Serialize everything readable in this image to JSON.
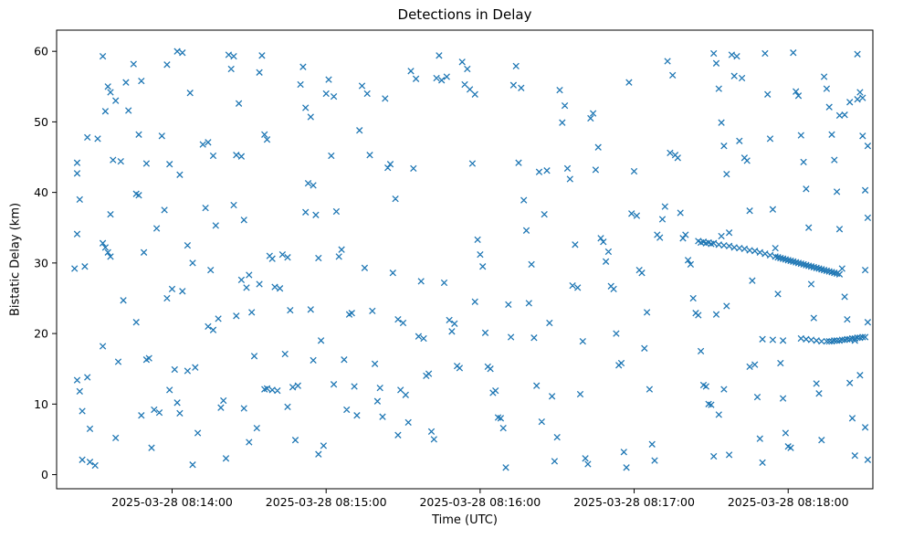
{
  "chart_data": {
    "type": "scatter",
    "title": "Detections in Delay",
    "xlabel": "Time (UTC)",
    "ylabel": "Bistatic Delay (km)",
    "x_unit": "seconds after 2025-03-28 08:13:00 UTC",
    "xlim": [
      15,
      333
    ],
    "ylim": [
      -2,
      63
    ],
    "grid": false,
    "legend": "none",
    "marker": "x",
    "marker_color": "#1f77b4",
    "x_ticks": [
      {
        "t": 60,
        "label": "2025-03-28 08:14:00"
      },
      {
        "t": 120,
        "label": "2025-03-28 08:15:00"
      },
      {
        "t": 180,
        "label": "2025-03-28 08:16:00"
      },
      {
        "t": 240,
        "label": "2025-03-28 08:17:00"
      },
      {
        "t": 300,
        "label": "2025-03-28 08:18:00"
      }
    ],
    "y_ticks": [
      0,
      10,
      20,
      30,
      40,
      50,
      60
    ],
    "points": [
      [
        23,
        44.2
      ],
      [
        23,
        42.7
      ],
      [
        24,
        39.0
      ],
      [
        23,
        34.1
      ],
      [
        22,
        29.2
      ],
      [
        26,
        29.5
      ],
      [
        23,
        13.4
      ],
      [
        27,
        13.8
      ],
      [
        24,
        11.8
      ],
      [
        25,
        9.0
      ],
      [
        28,
        6.5
      ],
      [
        25,
        2.1
      ],
      [
        28,
        1.8
      ],
      [
        30,
        1.3
      ],
      [
        27,
        47.8
      ],
      [
        31,
        47.6
      ],
      [
        33,
        59.3
      ],
      [
        35,
        55.0
      ],
      [
        36,
        54.2
      ],
      [
        34,
        51.5
      ],
      [
        38,
        53.0
      ],
      [
        37,
        44.6
      ],
      [
        40,
        44.4
      ],
      [
        36,
        36.9
      ],
      [
        33,
        32.8
      ],
      [
        34,
        32.2
      ],
      [
        35,
        31.5
      ],
      [
        36,
        30.9
      ],
      [
        33,
        18.2
      ],
      [
        39,
        16.0
      ],
      [
        38,
        5.2
      ],
      [
        41,
        24.7
      ],
      [
        42,
        55.6
      ],
      [
        43,
        51.6
      ],
      [
        45,
        58.2
      ],
      [
        48,
        55.8
      ],
      [
        47,
        48.2
      ],
      [
        46,
        39.8
      ],
      [
        47,
        39.6
      ],
      [
        50,
        44.1
      ],
      [
        49,
        31.5
      ],
      [
        46,
        21.6
      ],
      [
        51,
        16.5
      ],
      [
        50,
        16.3
      ],
      [
        48,
        8.4
      ],
      [
        53,
        9.2
      ],
      [
        55,
        8.8
      ],
      [
        52,
        3.8
      ],
      [
        58,
        58.1
      ],
      [
        56,
        48.0
      ],
      [
        59,
        44.0
      ],
      [
        57,
        37.5
      ],
      [
        54,
        34.9
      ],
      [
        60,
        26.3
      ],
      [
        58,
        25.0
      ],
      [
        61,
        14.9
      ],
      [
        59,
        12.0
      ],
      [
        62,
        10.2
      ],
      [
        63,
        8.7
      ],
      [
        62,
        60.0
      ],
      [
        64,
        59.8
      ],
      [
        67,
        54.1
      ],
      [
        63,
        42.5
      ],
      [
        66,
        32.5
      ],
      [
        68,
        30.0
      ],
      [
        64,
        26.0
      ],
      [
        69,
        15.2
      ],
      [
        66,
        14.7
      ],
      [
        70,
        5.9
      ],
      [
        68,
        1.4
      ],
      [
        74,
        47.1
      ],
      [
        72,
        46.8
      ],
      [
        76,
        45.2
      ],
      [
        73,
        37.8
      ],
      [
        77,
        35.3
      ],
      [
        75,
        29.0
      ],
      [
        78,
        22.1
      ],
      [
        74,
        21.0
      ],
      [
        76,
        20.5
      ],
      [
        80,
        10.5
      ],
      [
        79,
        9.5
      ],
      [
        81,
        2.3
      ],
      [
        82,
        59.5
      ],
      [
        84,
        59.3
      ],
      [
        83,
        57.5
      ],
      [
        86,
        52.6
      ],
      [
        85,
        45.3
      ],
      [
        87,
        45.1
      ],
      [
        84,
        38.2
      ],
      [
        88,
        36.1
      ],
      [
        90,
        28.3
      ],
      [
        87,
        27.6
      ],
      [
        89,
        26.5
      ],
      [
        85,
        22.5
      ],
      [
        91,
        23.0
      ],
      [
        92,
        16.8
      ],
      [
        88,
        9.4
      ],
      [
        90,
        4.6
      ],
      [
        93,
        6.6
      ],
      [
        95,
        59.4
      ],
      [
        94,
        57.0
      ],
      [
        97,
        47.5
      ],
      [
        96,
        48.2
      ],
      [
        98,
        31.0
      ],
      [
        99,
        30.6
      ],
      [
        94,
        27.0
      ],
      [
        100,
        26.6
      ],
      [
        97,
        12.2
      ],
      [
        99,
        12.0
      ],
      [
        101,
        11.9
      ],
      [
        96,
        12.1
      ],
      [
        103,
        31.2
      ],
      [
        105,
        30.8
      ],
      [
        102,
        26.4
      ],
      [
        106,
        23.3
      ],
      [
        104,
        17.1
      ],
      [
        107,
        12.4
      ],
      [
        109,
        12.6
      ],
      [
        105,
        9.6
      ],
      [
        108,
        4.9
      ],
      [
        111,
        57.8
      ],
      [
        110,
        55.3
      ],
      [
        112,
        52.0
      ],
      [
        114,
        50.7
      ],
      [
        113,
        41.3
      ],
      [
        115,
        41.0
      ],
      [
        112,
        37.2
      ],
      [
        116,
        36.8
      ],
      [
        117,
        30.7
      ],
      [
        114,
        23.4
      ],
      [
        118,
        19.0
      ],
      [
        115,
        16.2
      ],
      [
        119,
        4.1
      ],
      [
        117,
        2.9
      ],
      [
        121,
        56.0
      ],
      [
        120,
        54.0
      ],
      [
        123,
        53.6
      ],
      [
        122,
        45.2
      ],
      [
        124,
        37.3
      ],
      [
        126,
        31.9
      ],
      [
        125,
        30.9
      ],
      [
        127,
        16.3
      ],
      [
        123,
        12.8
      ],
      [
        128,
        9.2
      ],
      [
        130,
        22.9
      ],
      [
        129,
        22.7
      ],
      [
        131,
        12.5
      ],
      [
        132,
        8.4
      ],
      [
        134,
        55.1
      ],
      [
        136,
        54.0
      ],
      [
        133,
        48.8
      ],
      [
        137,
        45.3
      ],
      [
        135,
        29.3
      ],
      [
        138,
        23.2
      ],
      [
        139,
        15.7
      ],
      [
        141,
        12.3
      ],
      [
        140,
        10.4
      ],
      [
        142,
        8.2
      ],
      [
        143,
        53.3
      ],
      [
        145,
        44.0
      ],
      [
        144,
        43.5
      ],
      [
        147,
        39.1
      ],
      [
        146,
        28.6
      ],
      [
        148,
        22.0
      ],
      [
        150,
        21.5
      ],
      [
        149,
        12.0
      ],
      [
        151,
        11.3
      ],
      [
        152,
        7.4
      ],
      [
        148,
        5.6
      ],
      [
        153,
        57.2
      ],
      [
        155,
        56.1
      ],
      [
        154,
        43.4
      ],
      [
        157,
        27.4
      ],
      [
        156,
        19.6
      ],
      [
        158,
        19.3
      ],
      [
        160,
        14.3
      ],
      [
        159,
        14.0
      ],
      [
        161,
        6.1
      ],
      [
        162,
        5.0
      ],
      [
        164,
        59.4
      ],
      [
        163,
        56.2
      ],
      [
        165,
        55.9
      ],
      [
        167,
        56.4
      ],
      [
        166,
        27.2
      ],
      [
        168,
        21.9
      ],
      [
        170,
        21.4
      ],
      [
        169,
        20.3
      ],
      [
        171,
        15.4
      ],
      [
        172,
        15.1
      ],
      [
        173,
        58.5
      ],
      [
        175,
        57.5
      ],
      [
        174,
        55.3
      ],
      [
        176,
        54.6
      ],
      [
        178,
        53.9
      ],
      [
        177,
        44.1
      ],
      [
        179,
        33.3
      ],
      [
        180,
        31.2
      ],
      [
        181,
        29.5
      ],
      [
        178,
        24.5
      ],
      [
        182,
        20.1
      ],
      [
        183,
        15.3
      ],
      [
        184,
        15.0
      ],
      [
        185,
        11.6
      ],
      [
        186,
        11.9
      ],
      [
        187,
        8.1
      ],
      [
        188,
        8.0
      ],
      [
        189,
        6.6
      ],
      [
        190,
        1.0
      ],
      [
        191,
        24.1
      ],
      [
        192,
        19.5
      ],
      [
        194,
        57.9
      ],
      [
        193,
        55.2
      ],
      [
        196,
        54.8
      ],
      [
        195,
        44.2
      ],
      [
        197,
        38.9
      ],
      [
        198,
        34.6
      ],
      [
        200,
        29.8
      ],
      [
        199,
        24.3
      ],
      [
        201,
        19.4
      ],
      [
        202,
        12.6
      ],
      [
        204,
        7.5
      ],
      [
        203,
        42.9
      ],
      [
        206,
        43.1
      ],
      [
        205,
        36.9
      ],
      [
        207,
        21.5
      ],
      [
        208,
        11.1
      ],
      [
        210,
        5.3
      ],
      [
        209,
        1.9
      ],
      [
        211,
        54.5
      ],
      [
        213,
        52.3
      ],
      [
        212,
        49.9
      ],
      [
        214,
        43.4
      ],
      [
        215,
        41.9
      ],
      [
        217,
        32.6
      ],
      [
        216,
        26.8
      ],
      [
        218,
        26.5
      ],
      [
        220,
        18.9
      ],
      [
        219,
        11.4
      ],
      [
        221,
        2.3
      ],
      [
        222,
        1.5
      ],
      [
        224,
        51.2
      ],
      [
        223,
        50.5
      ],
      [
        226,
        46.4
      ],
      [
        225,
        43.2
      ],
      [
        227,
        33.5
      ],
      [
        228,
        33.0
      ],
      [
        230,
        31.6
      ],
      [
        229,
        30.2
      ],
      [
        231,
        26.7
      ],
      [
        232,
        26.3
      ],
      [
        233,
        20.0
      ],
      [
        235,
        15.8
      ],
      [
        234,
        15.5
      ],
      [
        236,
        3.2
      ],
      [
        237,
        1.0
      ],
      [
        238,
        55.6
      ],
      [
        240,
        43.0
      ],
      [
        239,
        37.0
      ],
      [
        241,
        36.7
      ],
      [
        242,
        29.0
      ],
      [
        243,
        28.6
      ],
      [
        245,
        23.0
      ],
      [
        244,
        17.9
      ],
      [
        246,
        12.1
      ],
      [
        247,
        4.3
      ],
      [
        248,
        2.0
      ],
      [
        249,
        34.0
      ],
      [
        250,
        33.6
      ],
      [
        251,
        36.2
      ],
      [
        252,
        38.0
      ],
      [
        253,
        58.6
      ],
      [
        255,
        56.6
      ],
      [
        254,
        45.6
      ],
      [
        256,
        45.3
      ],
      [
        257,
        44.9
      ],
      [
        258,
        37.1
      ],
      [
        260,
        34.0
      ],
      [
        259,
        33.5
      ],
      [
        261,
        30.4
      ],
      [
        262,
        29.8
      ],
      [
        263,
        25.0
      ],
      [
        264,
        22.9
      ],
      [
        265,
        22.6
      ],
      [
        266,
        17.5
      ],
      [
        267,
        12.7
      ],
      [
        268,
        12.5
      ],
      [
        269,
        10.0
      ],
      [
        270,
        9.9
      ],
      [
        271,
        59.7
      ],
      [
        272,
        58.3
      ],
      [
        273,
        54.7
      ],
      [
        274,
        49.9
      ],
      [
        275,
        46.6
      ],
      [
        276,
        42.6
      ],
      [
        277,
        34.3
      ],
      [
        274,
        33.8
      ],
      [
        276,
        23.9
      ],
      [
        272,
        22.7
      ],
      [
        275,
        12.1
      ],
      [
        273,
        8.5
      ],
      [
        277,
        2.8
      ],
      [
        271,
        2.6
      ],
      [
        278,
        59.5
      ],
      [
        280,
        59.3
      ],
      [
        279,
        56.5
      ],
      [
        282,
        56.2
      ],
      [
        281,
        47.3
      ],
      [
        283,
        44.9
      ],
      [
        284,
        44.5
      ],
      [
        285,
        37.4
      ],
      [
        286,
        27.5
      ],
      [
        287,
        15.6
      ],
      [
        285,
        15.3
      ],
      [
        288,
        11.0
      ],
      [
        289,
        5.1
      ],
      [
        290,
        1.7
      ],
      [
        291,
        59.7
      ],
      [
        292,
        53.9
      ],
      [
        293,
        47.6
      ],
      [
        294,
        37.6
      ],
      [
        295,
        32.1
      ],
      [
        296,
        25.6
      ],
      [
        297,
        15.8
      ],
      [
        298,
        10.8
      ],
      [
        299,
        5.9
      ],
      [
        300,
        4.0
      ],
      [
        301,
        3.8
      ],
      [
        302,
        59.8
      ],
      [
        303,
        54.3
      ],
      [
        304,
        53.7
      ],
      [
        305,
        48.1
      ],
      [
        306,
        44.3
      ],
      [
        307,
        40.5
      ],
      [
        308,
        35.0
      ],
      [
        309,
        27.0
      ],
      [
        310,
        22.2
      ],
      [
        311,
        12.9
      ],
      [
        312,
        11.5
      ],
      [
        313,
        4.9
      ],
      [
        314,
        56.4
      ],
      [
        315,
        54.7
      ],
      [
        316,
        52.1
      ],
      [
        317,
        48.2
      ],
      [
        318,
        44.6
      ],
      [
        319,
        40.1
      ],
      [
        320,
        34.8
      ],
      [
        321,
        29.2
      ],
      [
        322,
        25.2
      ],
      [
        323,
        22.0
      ],
      [
        324,
        13.0
      ],
      [
        325,
        8.0
      ],
      [
        326,
        2.7
      ],
      [
        327,
        59.6
      ],
      [
        328,
        54.2
      ],
      [
        329,
        48.0
      ],
      [
        330,
        40.3
      ],
      [
        331,
        36.4
      ],
      [
        330,
        29.0
      ],
      [
        331,
        21.6
      ],
      [
        326,
        19.0
      ],
      [
        328,
        14.1
      ],
      [
        330,
        6.7
      ],
      [
        331,
        2.1
      ],
      [
        320,
        50.9
      ],
      [
        322,
        51.0
      ],
      [
        324,
        52.8
      ],
      [
        327,
        53.2
      ],
      [
        329,
        53.4
      ],
      [
        331,
        46.6
      ],
      [
        290,
        19.2
      ],
      [
        294,
        19.1
      ],
      [
        298,
        19.0
      ],
      [
        265,
        33.1
      ],
      [
        266,
        32.9
      ],
      [
        267,
        33.0
      ],
      [
        268,
        32.8
      ],
      [
        269,
        32.9
      ],
      [
        270,
        32.7
      ],
      [
        271,
        32.8
      ],
      [
        273,
        32.6
      ],
      [
        275,
        32.5
      ],
      [
        277,
        32.4
      ],
      [
        279,
        32.2
      ],
      [
        281,
        32.1
      ],
      [
        283,
        32.0
      ],
      [
        285,
        31.8
      ],
      [
        287,
        31.7
      ],
      [
        289,
        31.5
      ],
      [
        291,
        31.3
      ],
      [
        293,
        31.1
      ],
      [
        295,
        30.9
      ],
      [
        296,
        30.8
      ],
      [
        297,
        30.7
      ],
      [
        298,
        30.6
      ],
      [
        299,
        30.5
      ],
      [
        300,
        30.4
      ],
      [
        301,
        30.3
      ],
      [
        302,
        30.2
      ],
      [
        303,
        30.1
      ],
      [
        304,
        30.0
      ],
      [
        305,
        29.9
      ],
      [
        306,
        29.8
      ],
      [
        307,
        29.7
      ],
      [
        308,
        29.6
      ],
      [
        309,
        29.5
      ],
      [
        310,
        29.4
      ],
      [
        311,
        29.3
      ],
      [
        312,
        29.2
      ],
      [
        313,
        29.1
      ],
      [
        314,
        29.0
      ],
      [
        315,
        28.9
      ],
      [
        316,
        28.8
      ],
      [
        317,
        28.7
      ],
      [
        318,
        28.6
      ],
      [
        319,
        28.5
      ],
      [
        320,
        28.4
      ],
      [
        305,
        19.3
      ],
      [
        307,
        19.2
      ],
      [
        309,
        19.1
      ],
      [
        311,
        19.0
      ],
      [
        313,
        18.9
      ],
      [
        315,
        18.9
      ],
      [
        316,
        18.9
      ],
      [
        317,
        18.9
      ],
      [
        318,
        19.0
      ],
      [
        319,
        19.0
      ],
      [
        320,
        19.0
      ],
      [
        321,
        19.1
      ],
      [
        322,
        19.1
      ],
      [
        323,
        19.2
      ],
      [
        324,
        19.2
      ],
      [
        325,
        19.3
      ],
      [
        326,
        19.3
      ],
      [
        327,
        19.4
      ],
      [
        328,
        19.4
      ],
      [
        329,
        19.5
      ],
      [
        330,
        19.5
      ]
    ]
  }
}
